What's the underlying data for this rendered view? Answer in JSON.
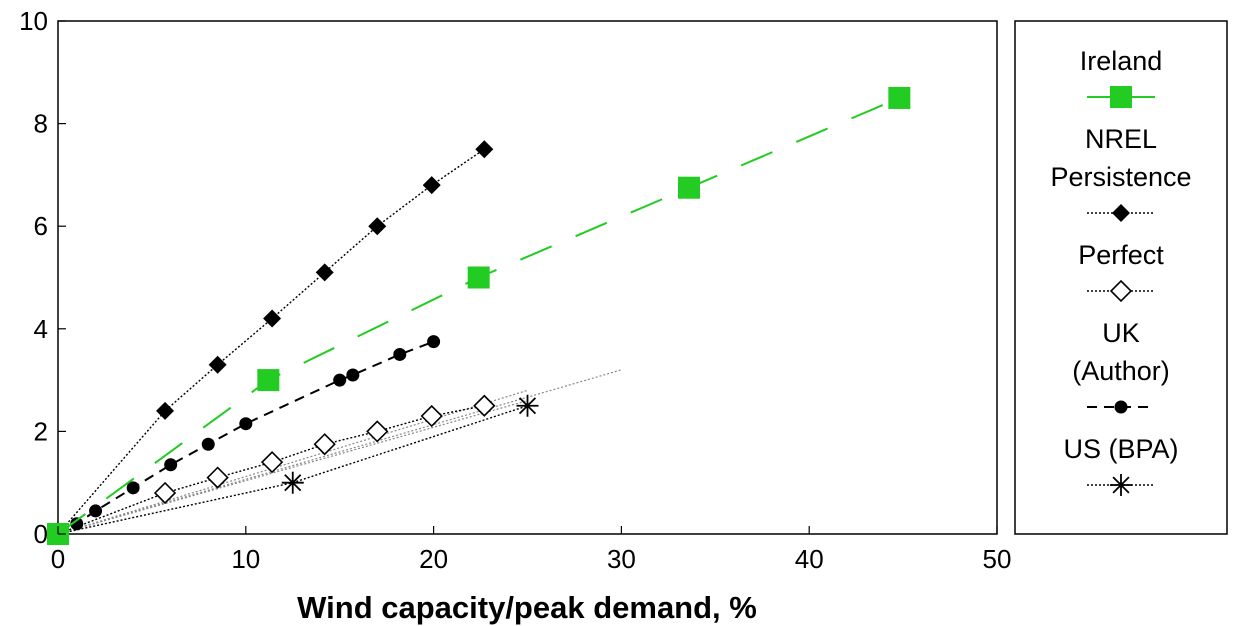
{
  "chart_data": {
    "type": "line",
    "title": "",
    "xlabel": "Wind capacity/peak demand, %",
    "ylabel": "",
    "xlim": [
      0,
      50
    ],
    "ylim": [
      0,
      10
    ],
    "x_ticks": [
      "0",
      "10",
      "20",
      "30",
      "40",
      "50"
    ],
    "y_ticks": [
      "0",
      "2",
      "4",
      "6",
      "8",
      "10"
    ],
    "grid": false,
    "legend_position": "right",
    "series": [
      {
        "name": "Ireland",
        "marker": "square-filled",
        "line": "long-dash",
        "color": "#22cc22",
        "points": [
          [
            0,
            0
          ],
          [
            11.2,
            3.0
          ],
          [
            22.4,
            5.0
          ],
          [
            33.6,
            6.75
          ],
          [
            44.8,
            8.5
          ]
        ]
      },
      {
        "name": "NREL Persistence",
        "marker": "diamond-filled",
        "line": "dotted",
        "color": "#000000",
        "points": [
          [
            0,
            0
          ],
          [
            5.7,
            2.4
          ],
          [
            8.5,
            3.3
          ],
          [
            11.4,
            4.2
          ],
          [
            14.2,
            5.1
          ],
          [
            17.0,
            6.0
          ],
          [
            19.9,
            6.8
          ],
          [
            22.7,
            7.5
          ]
        ]
      },
      {
        "name": "Perfect",
        "marker": "diamond-open",
        "line": "dotted",
        "color": "#000000",
        "points": [
          [
            0,
            0
          ],
          [
            5.7,
            0.8
          ],
          [
            8.5,
            1.1
          ],
          [
            11.4,
            1.4
          ],
          [
            14.2,
            1.75
          ],
          [
            17.0,
            2.0
          ],
          [
            19.9,
            2.3
          ],
          [
            22.7,
            2.5
          ]
        ]
      },
      {
        "name": "UK (Author)",
        "marker": "circle-filled",
        "line": "dashed",
        "color": "#000000",
        "points": [
          [
            0,
            0
          ],
          [
            1,
            0.2
          ],
          [
            2,
            0.45
          ],
          [
            4,
            0.9
          ],
          [
            6,
            1.35
          ],
          [
            8,
            1.75
          ],
          [
            10,
            2.15
          ],
          [
            15,
            3.0
          ],
          [
            15.7,
            3.1
          ],
          [
            18.2,
            3.5
          ],
          [
            20,
            3.75
          ]
        ]
      },
      {
        "name": "US (BPA)",
        "marker": "asterisk",
        "line": "dotted",
        "color": "#000000",
        "points": [
          [
            0,
            0
          ],
          [
            12.5,
            1.0
          ],
          [
            25.0,
            2.5
          ]
        ]
      }
    ],
    "trend_lines": [
      {
        "from": [
          0,
          0
        ],
        "to": [
          30,
          3.2
        ],
        "color": "#888888"
      },
      {
        "from": [
          0,
          0
        ],
        "to": [
          25,
          2.6
        ],
        "color": "#888888"
      },
      {
        "from": [
          0,
          0
        ],
        "to": [
          25,
          2.8
        ],
        "color": "#888888"
      }
    ]
  },
  "legend": {
    "entries": [
      {
        "label_lines": [
          "Ireland"
        ],
        "series": 0
      },
      {
        "label_lines": [
          "NREL",
          "Persistence"
        ],
        "series": 1
      },
      {
        "label_lines": [
          "Perfect"
        ],
        "series": 2
      },
      {
        "label_lines": [
          "UK",
          "(Author)"
        ],
        "series": 3
      },
      {
        "label_lines": [
          "US (BPA)"
        ],
        "series": 4
      }
    ]
  }
}
